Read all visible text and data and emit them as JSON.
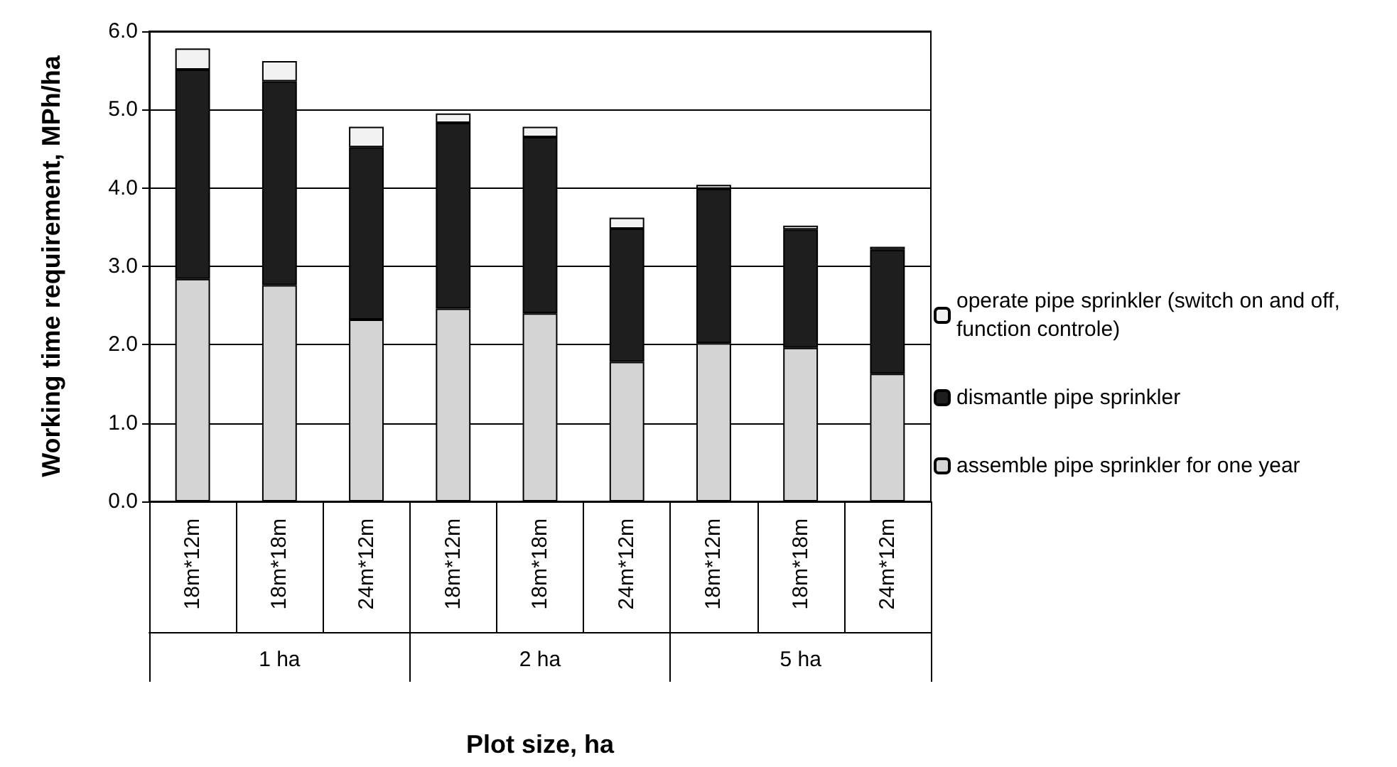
{
  "chart_data": {
    "type": "bar",
    "stacked": true,
    "xlabel": "Plot size, ha",
    "ylabel": "Working time requirement, MPh/ha",
    "categories": [
      "18m*12m",
      "18m*18m",
      "24m*12m",
      "18m*12m",
      "18m*18m",
      "24m*12m",
      "18m*12m",
      "18m*18m",
      "24m*12m"
    ],
    "annotations": [
      "1 ha",
      "2 ha",
      "5 ha"
    ],
    "series": [
      {
        "name": "assemble pipe sprinkler for one year",
        "color": "#d4d4d4",
        "values": [
          2.84,
          2.76,
          2.32,
          2.46,
          2.4,
          1.78,
          2.02,
          1.96,
          1.63
        ]
      },
      {
        "name": "dismantle pipe sprinkler",
        "color": "#1e1e1e",
        "values": [
          2.67,
          2.6,
          2.2,
          2.37,
          2.25,
          1.7,
          1.97,
          1.51,
          1.58
        ]
      },
      {
        "name": "operate pipe sprinkler (switch on and off, function controle)",
        "color": "#f2f2f2",
        "values": [
          0.27,
          0.26,
          0.26,
          0.12,
          0.13,
          0.14,
          0.05,
          0.05,
          0.04
        ]
      }
    ],
    "ylim": [
      0,
      6
    ],
    "yticks": [
      {
        "value": 0,
        "label": "0.0"
      },
      {
        "value": 1,
        "label": "1.0"
      },
      {
        "value": 2,
        "label": "2.0"
      },
      {
        "value": 3,
        "label": "3.0"
      },
      {
        "value": 4,
        "label": "4.0"
      },
      {
        "value": 5,
        "label": "5.0"
      },
      {
        "value": 6,
        "label": "6.0"
      }
    ],
    "grid": "y",
    "legend": "right"
  }
}
